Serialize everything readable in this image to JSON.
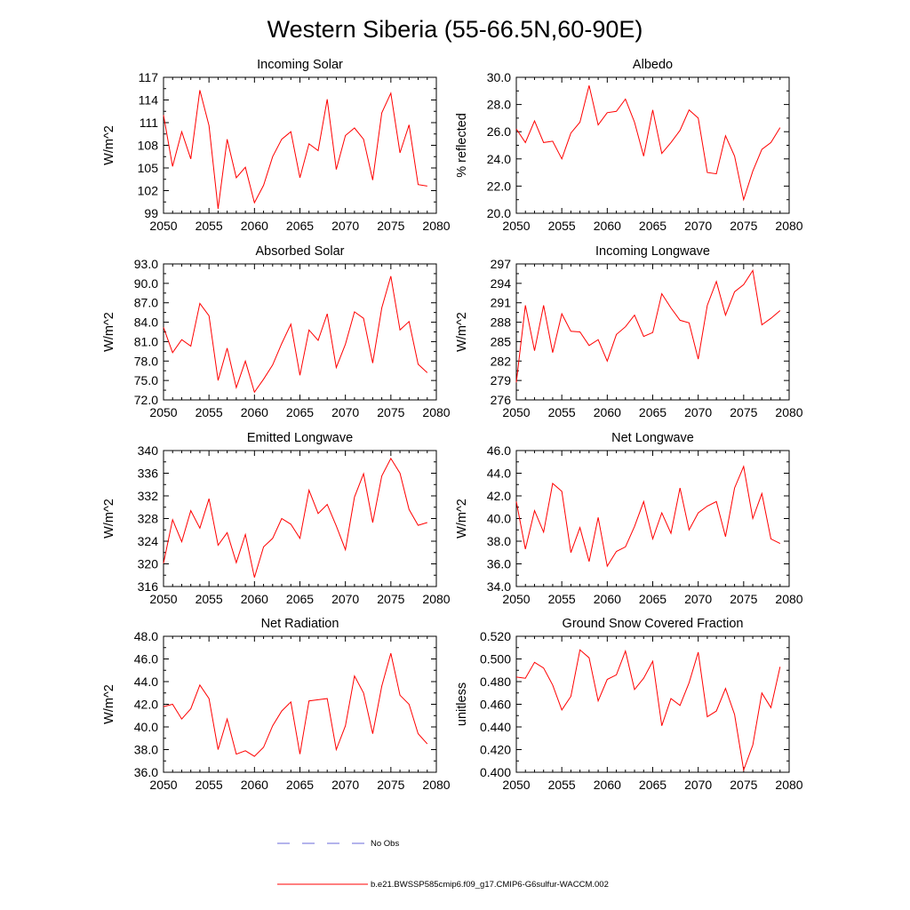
{
  "figure": {
    "title": "Western Siberia (55-66.5N,60-90E)",
    "series_color": "#ff0000",
    "obs_color": "#6a6ad8"
  },
  "legend": {
    "obs_label": "No Obs",
    "model_label": "b.e21.BWSSP585cmip6.f09_g17.CMIP6-G6sulfur-WACCM.002"
  },
  "chart_data": [
    {
      "type": "line",
      "title": "Incoming Solar",
      "ylabel": "W/m^2",
      "xlim": [
        2050,
        2080
      ],
      "ylim": [
        99,
        117
      ],
      "xticks": [
        "2050",
        "2055",
        "2060",
        "2065",
        "2070",
        "2075",
        "2080"
      ],
      "yticks": [
        "99",
        "102",
        "105",
        "108",
        "111",
        "114",
        "117"
      ],
      "x": [
        2050,
        2051,
        2052,
        2053,
        2054,
        2055,
        2056,
        2057,
        2058,
        2059,
        2060,
        2061,
        2062,
        2063,
        2064,
        2065,
        2066,
        2067,
        2068,
        2069,
        2070,
        2071,
        2072,
        2073,
        2074,
        2075,
        2076,
        2077,
        2078,
        2079
      ],
      "series": [
        {
          "values": [
            112.0,
            105.2,
            109.8,
            106.2,
            115.3,
            110.6,
            99.6,
            108.8,
            103.7,
            105.1,
            100.4,
            102.7,
            106.5,
            108.8,
            109.8,
            103.7,
            108.2,
            107.3,
            114.1,
            104.8,
            109.3,
            110.3,
            108.8,
            103.4,
            112.3,
            114.9,
            107.0,
            110.7,
            102.8,
            102.6
          ]
        }
      ]
    },
    {
      "type": "line",
      "title": "Albedo",
      "ylabel": "% reflected",
      "xlim": [
        2050,
        2080
      ],
      "ylim": [
        20.0,
        30.0
      ],
      "xticks": [
        "2050",
        "2055",
        "2060",
        "2065",
        "2070",
        "2075",
        "2080"
      ],
      "yticks": [
        "20.0",
        "22.0",
        "24.0",
        "26.0",
        "28.0",
        "30.0"
      ],
      "x": [
        2050,
        2051,
        2052,
        2053,
        2054,
        2055,
        2056,
        2057,
        2058,
        2059,
        2060,
        2061,
        2062,
        2063,
        2064,
        2065,
        2066,
        2067,
        2068,
        2069,
        2070,
        2071,
        2072,
        2073,
        2074,
        2075,
        2076,
        2077,
        2078,
        2079
      ],
      "series": [
        {
          "values": [
            26.2,
            25.2,
            26.8,
            25.2,
            25.3,
            24.0,
            25.9,
            26.7,
            29.4,
            26.5,
            27.4,
            27.5,
            28.4,
            26.7,
            24.2,
            27.6,
            24.4,
            25.2,
            26.1,
            27.6,
            27.0,
            23.0,
            22.9,
            25.7,
            24.2,
            21.0,
            23.1,
            24.7,
            25.2,
            26.3
          ]
        }
      ]
    },
    {
      "type": "line",
      "title": "Absorbed Solar",
      "ylabel": "W/m^2",
      "xlim": [
        2050,
        2080
      ],
      "ylim": [
        72.0,
        93.0
      ],
      "xticks": [
        "2050",
        "2055",
        "2060",
        "2065",
        "2070",
        "2075",
        "2080"
      ],
      "yticks": [
        "72.0",
        "75.0",
        "78.0",
        "81.0",
        "84.0",
        "87.0",
        "90.0",
        "93.0"
      ],
      "x": [
        2050,
        2051,
        2052,
        2053,
        2054,
        2055,
        2056,
        2057,
        2058,
        2059,
        2060,
        2061,
        2062,
        2063,
        2064,
        2065,
        2066,
        2067,
        2068,
        2069,
        2070,
        2071,
        2072,
        2073,
        2074,
        2075,
        2076,
        2077,
        2078,
        2079
      ],
      "series": [
        {
          "values": [
            83.2,
            79.3,
            81.3,
            80.3,
            86.9,
            85.0,
            75.0,
            80.0,
            73.9,
            78.0,
            73.2,
            75.2,
            77.4,
            80.7,
            83.7,
            75.8,
            82.8,
            81.2,
            85.3,
            77.0,
            80.6,
            85.6,
            84.6,
            77.7,
            86.2,
            91.1,
            82.8,
            84.1,
            77.5,
            76.2
          ]
        }
      ]
    },
    {
      "type": "line",
      "title": "Incoming Longwave",
      "ylabel": "W/m^2",
      "xlim": [
        2050,
        2080
      ],
      "ylim": [
        276,
        297
      ],
      "xticks": [
        "2050",
        "2055",
        "2060",
        "2065",
        "2070",
        "2075",
        "2080"
      ],
      "yticks": [
        "276",
        "279",
        "282",
        "285",
        "288",
        "291",
        "294",
        "297"
      ],
      "x": [
        2050,
        2051,
        2052,
        2053,
        2054,
        2055,
        2056,
        2057,
        2058,
        2059,
        2060,
        2061,
        2062,
        2063,
        2064,
        2065,
        2066,
        2067,
        2068,
        2069,
        2070,
        2071,
        2072,
        2073,
        2074,
        2075,
        2076,
        2077,
        2078,
        2079
      ],
      "series": [
        {
          "values": [
            278.7,
            290.6,
            283.6,
            290.6,
            283.3,
            289.3,
            286.6,
            286.5,
            284.4,
            285.3,
            282.0,
            286.1,
            287.3,
            289.1,
            285.8,
            286.4,
            292.4,
            290.2,
            288.3,
            287.9,
            282.3,
            290.6,
            294.3,
            289.1,
            292.7,
            293.8,
            296.0,
            287.6,
            288.6,
            289.8
          ]
        }
      ]
    },
    {
      "type": "line",
      "title": "Emitted Longwave",
      "ylabel": "W/m^2",
      "xlim": [
        2050,
        2080
      ],
      "ylim": [
        316,
        340
      ],
      "xticks": [
        "2050",
        "2055",
        "2060",
        "2065",
        "2070",
        "2075",
        "2080"
      ],
      "yticks": [
        "316",
        "320",
        "324",
        "328",
        "332",
        "336",
        "340"
      ],
      "x": [
        2050,
        2051,
        2052,
        2053,
        2054,
        2055,
        2056,
        2057,
        2058,
        2059,
        2060,
        2061,
        2062,
        2063,
        2064,
        2065,
        2066,
        2067,
        2068,
        2069,
        2070,
        2071,
        2072,
        2073,
        2074,
        2075,
        2076,
        2077,
        2078,
        2079
      ],
      "series": [
        {
          "values": [
            320.1,
            327.8,
            323.9,
            329.4,
            326.3,
            331.5,
            323.3,
            325.5,
            320.2,
            325.2,
            317.6,
            323.0,
            324.5,
            328.0,
            327.0,
            324.5,
            333.0,
            328.9,
            330.5,
            326.7,
            322.5,
            331.8,
            335.9,
            327.3,
            335.5,
            338.6,
            336.0,
            329.6,
            326.8,
            327.3
          ]
        }
      ]
    },
    {
      "type": "line",
      "title": "Net Longwave",
      "ylabel": "W/m^2",
      "xlim": [
        2050,
        2080
      ],
      "ylim": [
        34.0,
        46.0
      ],
      "xticks": [
        "2050",
        "2055",
        "2060",
        "2065",
        "2070",
        "2075",
        "2080"
      ],
      "yticks": [
        "34.0",
        "36.0",
        "38.0",
        "40.0",
        "42.0",
        "44.0",
        "46.0"
      ],
      "x": [
        2050,
        2051,
        2052,
        2053,
        2054,
        2055,
        2056,
        2057,
        2058,
        2059,
        2060,
        2061,
        2062,
        2063,
        2064,
        2065,
        2066,
        2067,
        2068,
        2069,
        2070,
        2071,
        2072,
        2073,
        2074,
        2075,
        2076,
        2077,
        2078,
        2079
      ],
      "series": [
        {
          "values": [
            41.5,
            37.3,
            40.7,
            38.8,
            43.1,
            42.4,
            37.0,
            39.2,
            36.2,
            40.1,
            35.8,
            37.1,
            37.5,
            39.3,
            41.5,
            38.2,
            40.5,
            38.7,
            42.7,
            39.0,
            40.5,
            41.1,
            41.5,
            38.4,
            42.7,
            44.6,
            40.0,
            42.2,
            38.2,
            37.8
          ]
        }
      ]
    },
    {
      "type": "line",
      "title": "Net Radiation",
      "ylabel": "W/m^2",
      "xlim": [
        2050,
        2080
      ],
      "ylim": [
        36.0,
        48.0
      ],
      "xticks": [
        "2050",
        "2055",
        "2060",
        "2065",
        "2070",
        "2075",
        "2080"
      ],
      "yticks": [
        "36.0",
        "38.0",
        "40.0",
        "42.0",
        "44.0",
        "46.0",
        "48.0"
      ],
      "x": [
        2050,
        2051,
        2052,
        2053,
        2054,
        2055,
        2056,
        2057,
        2058,
        2059,
        2060,
        2061,
        2062,
        2063,
        2064,
        2065,
        2066,
        2067,
        2068,
        2069,
        2070,
        2071,
        2072,
        2073,
        2074,
        2075,
        2076,
        2077,
        2078,
        2079
      ],
      "series": [
        {
          "values": [
            41.8,
            42.0,
            40.7,
            41.6,
            43.7,
            42.5,
            38.0,
            40.7,
            37.6,
            37.9,
            37.4,
            38.2,
            40.1,
            41.4,
            42.2,
            37.6,
            42.3,
            42.4,
            42.5,
            38.0,
            40.1,
            44.5,
            43.0,
            39.4,
            43.6,
            46.5,
            42.8,
            42.0,
            39.4,
            38.5
          ]
        }
      ]
    },
    {
      "type": "line",
      "title": "Ground Snow Covered Fraction",
      "ylabel": "unitless",
      "xlim": [
        2050,
        2080
      ],
      "ylim": [
        0.4,
        0.52
      ],
      "xticks": [
        "2050",
        "2055",
        "2060",
        "2065",
        "2070",
        "2075",
        "2080"
      ],
      "yticks": [
        "0.400",
        "0.420",
        "0.440",
        "0.460",
        "0.480",
        "0.500",
        "0.520"
      ],
      "x": [
        2050,
        2051,
        2052,
        2053,
        2054,
        2055,
        2056,
        2057,
        2058,
        2059,
        2060,
        2061,
        2062,
        2063,
        2064,
        2065,
        2066,
        2067,
        2068,
        2069,
        2070,
        2071,
        2072,
        2073,
        2074,
        2075,
        2076,
        2077,
        2078,
        2079
      ],
      "series": [
        {
          "values": [
            0.484,
            0.483,
            0.497,
            0.492,
            0.477,
            0.455,
            0.467,
            0.508,
            0.501,
            0.463,
            0.482,
            0.486,
            0.507,
            0.473,
            0.483,
            0.498,
            0.441,
            0.465,
            0.459,
            0.479,
            0.506,
            0.449,
            0.454,
            0.474,
            0.451,
            0.402,
            0.424,
            0.47,
            0.457,
            0.493
          ]
        }
      ]
    }
  ]
}
